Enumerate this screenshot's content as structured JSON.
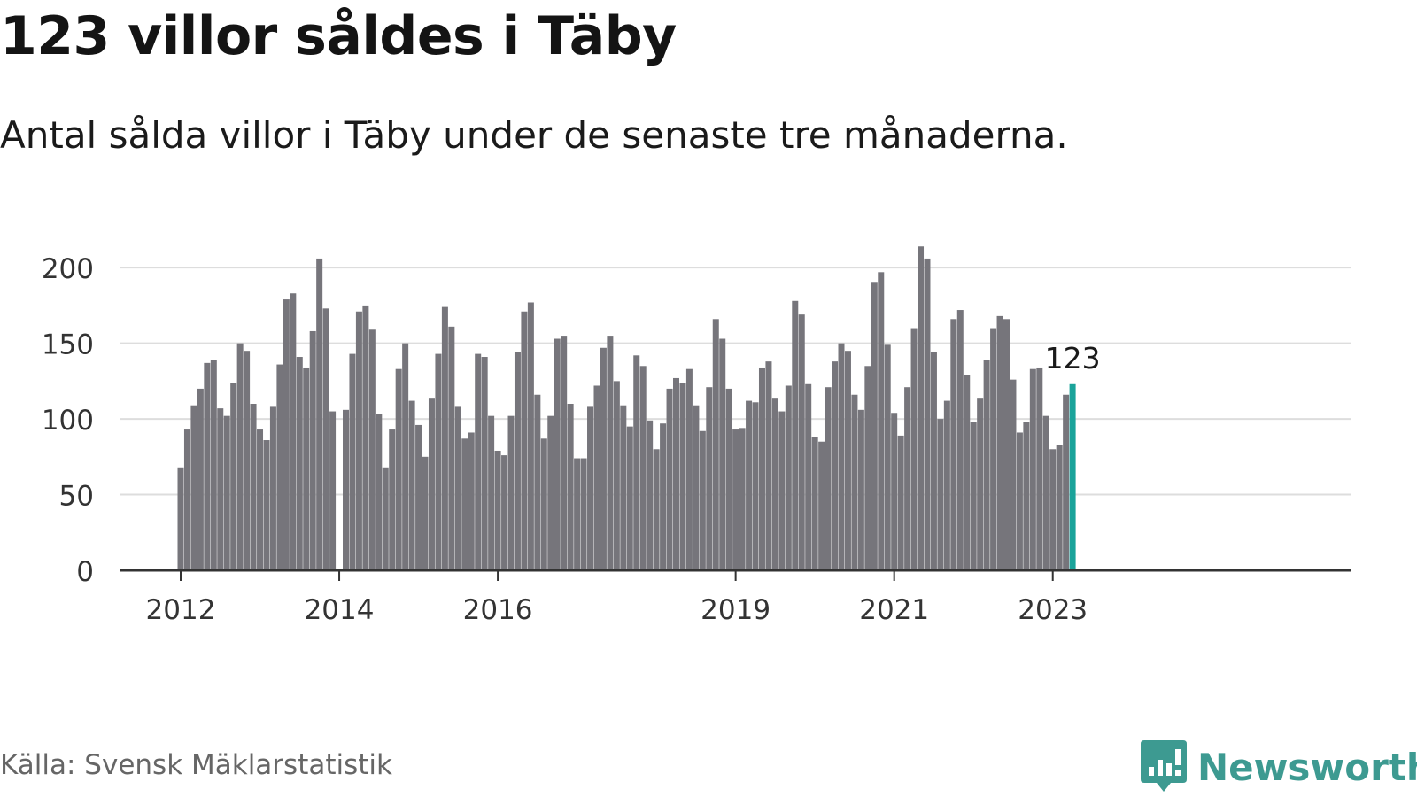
{
  "header": {
    "title": "123 villor såldes i Täby",
    "subtitle": "Antal sålda villor i Täby under de senaste tre månaderna."
  },
  "footer": {
    "source": "Källa: Svensk Mäklarstatistik",
    "brand": "Newsworthy"
  },
  "colors": {
    "bar": "#76757b",
    "highlight": "#1aa39a",
    "brand": "#3d9a91",
    "grid": "#dddddd",
    "axis": "#333333",
    "tick_text": "#333333"
  },
  "chart_data": {
    "type": "bar",
    "title": "123 villor såldes i Täby",
    "subtitle": "Antal sålda villor i Täby under de senaste tre månaderna.",
    "xlabel": "",
    "ylabel": "",
    "ylim": [
      0,
      220
    ],
    "yticks": [
      0,
      50,
      100,
      150,
      200
    ],
    "grid": true,
    "legend": "none",
    "xticks": [
      {
        "label": "2012",
        "index": 0
      },
      {
        "label": "2014",
        "index": 24
      },
      {
        "label": "2016",
        "index": 48
      },
      {
        "label": "2019",
        "index": 84
      },
      {
        "label": "2021",
        "index": 108
      },
      {
        "label": "2023",
        "index": 132
      }
    ],
    "categories": [
      "2012-01",
      "2012-02",
      "2012-03",
      "2012-04",
      "2012-05",
      "2012-06",
      "2012-07",
      "2012-08",
      "2012-09",
      "2012-10",
      "2012-11",
      "2012-12",
      "2013-01",
      "2013-02",
      "2013-03",
      "2013-04",
      "2013-05",
      "2013-06",
      "2013-07",
      "2013-08",
      "2013-09",
      "2013-10",
      "2013-11",
      "2013-12",
      "2014-01",
      "2014-02",
      "2014-03",
      "2014-04",
      "2014-05",
      "2014-06",
      "2014-07",
      "2014-08",
      "2014-09",
      "2014-10",
      "2014-11",
      "2014-12",
      "2015-01",
      "2015-02",
      "2015-03",
      "2015-04",
      "2015-05",
      "2015-06",
      "2015-07",
      "2015-08",
      "2015-09",
      "2015-10",
      "2015-11",
      "2015-12",
      "2016-01",
      "2016-02",
      "2016-03",
      "2016-04",
      "2016-05",
      "2016-06",
      "2016-07",
      "2016-08",
      "2016-09",
      "2016-10",
      "2016-11",
      "2016-12",
      "2017-01",
      "2017-02",
      "2017-03",
      "2017-04",
      "2017-05",
      "2017-06",
      "2017-07",
      "2017-08",
      "2017-09",
      "2017-10",
      "2017-11",
      "2017-12",
      "2018-01",
      "2018-02",
      "2018-03",
      "2018-04",
      "2018-05",
      "2018-06",
      "2018-07",
      "2018-08",
      "2018-09",
      "2018-10",
      "2018-11",
      "2018-12",
      "2019-01",
      "2019-02",
      "2019-03",
      "2019-04",
      "2019-05",
      "2019-06",
      "2019-07",
      "2019-08",
      "2019-09",
      "2019-10",
      "2019-11",
      "2019-12",
      "2020-01",
      "2020-02",
      "2020-03",
      "2020-04",
      "2020-05",
      "2020-06",
      "2020-07",
      "2020-08",
      "2020-09",
      "2020-10",
      "2020-11",
      "2020-12",
      "2021-01",
      "2021-02",
      "2021-03",
      "2021-04",
      "2021-05",
      "2021-06",
      "2021-07",
      "2021-08",
      "2021-09",
      "2021-10",
      "2021-11",
      "2021-12",
      "2022-01",
      "2022-02",
      "2022-03",
      "2022-04",
      "2022-05",
      "2022-06",
      "2022-07",
      "2022-08",
      "2022-09",
      "2022-10",
      "2022-11",
      "2022-12",
      "2023-01",
      "2023-02",
      "2023-03",
      "2023-04"
    ],
    "values": [
      68,
      93,
      109,
      120,
      137,
      139,
      107,
      102,
      124,
      150,
      145,
      110,
      93,
      86,
      108,
      136,
      179,
      183,
      141,
      134,
      158,
      206,
      173,
      105,
      0,
      106,
      143,
      171,
      175,
      159,
      103,
      68,
      93,
      133,
      150,
      112,
      96,
      75,
      114,
      143,
      174,
      161,
      108,
      87,
      91,
      143,
      141,
      102,
      79,
      76,
      102,
      144,
      171,
      177,
      116,
      87,
      102,
      153,
      155,
      110,
      74,
      74,
      108,
      122,
      147,
      155,
      125,
      109,
      95,
      142,
      135,
      99,
      80,
      97,
      120,
      127,
      124,
      133,
      109,
      92,
      121,
      166,
      153,
      120,
      93,
      94,
      112,
      111,
      134,
      138,
      114,
      105,
      122,
      178,
      169,
      123,
      88,
      85,
      121,
      138,
      150,
      145,
      116,
      106,
      135,
      190,
      197,
      149,
      104,
      89,
      121,
      160,
      214,
      206,
      144,
      100,
      112,
      166,
      172,
      129,
      98,
      114,
      139,
      160,
      168,
      166,
      126,
      91,
      98,
      133,
      134,
      102,
      80,
      83,
      116,
      123
    ],
    "highlight_index": 135,
    "highlight_label": "123"
  }
}
